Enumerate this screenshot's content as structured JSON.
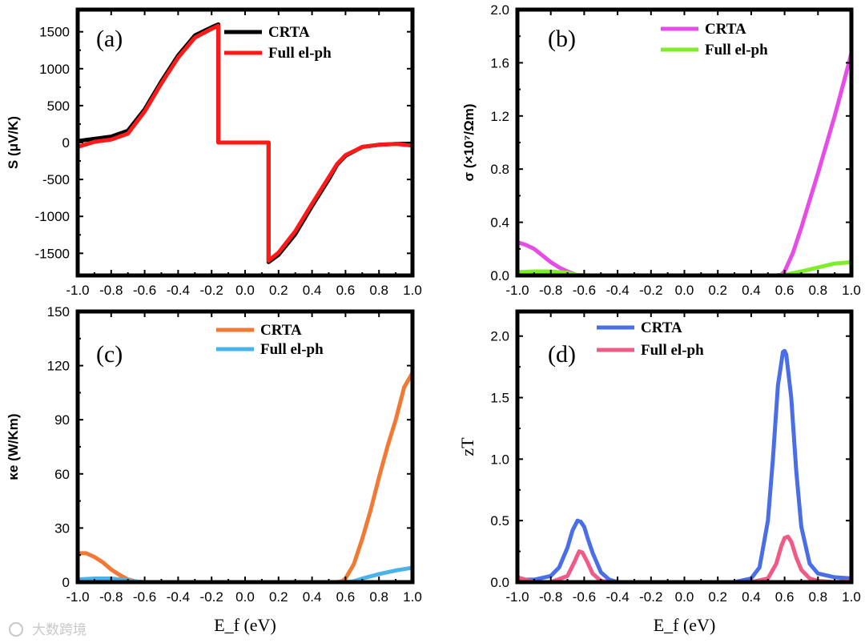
{
  "watermark": {
    "text": "大数跨境"
  },
  "chart_data": [
    {
      "panel": "(a)",
      "type": "line",
      "xlabel": "",
      "ylabel": "S (μV/K)",
      "xlim": [
        -1.0,
        1.0
      ],
      "ylim": [
        -1800,
        1800
      ],
      "xticks": [
        -1.0,
        -0.8,
        -0.6,
        -0.4,
        -0.2,
        0.0,
        0.2,
        0.4,
        0.6,
        0.8,
        1.0
      ],
      "xtick_labels": [
        "-1.0",
        "-0.8",
        "-0.6",
        "-0.4",
        "-0.2",
        "0.0",
        "0.2",
        "0.4",
        "0.6",
        "0.8",
        "1.0"
      ],
      "yticks": [
        -1500,
        -1000,
        -500,
        0,
        500,
        1000,
        1500
      ],
      "ytick_labels": [
        "-1500",
        "-1000",
        "-500",
        "0",
        "500",
        "1000",
        "1500"
      ],
      "legend": "top-right",
      "series": [
        {
          "name": "CRTA",
          "color": "#000000",
          "x": [
            -1.0,
            -0.9,
            -0.8,
            -0.7,
            -0.6,
            -0.5,
            -0.4,
            -0.3,
            -0.2,
            -0.16,
            -0.16,
            0.14,
            0.14,
            0.2,
            0.3,
            0.4,
            0.5,
            0.55,
            0.6,
            0.7,
            0.8,
            0.9,
            1.0
          ],
          "y": [
            20,
            50,
            80,
            160,
            450,
            830,
            1180,
            1450,
            1560,
            1600,
            0,
            0,
            -1620,
            -1520,
            -1240,
            -860,
            -500,
            -300,
            -180,
            -60,
            -30,
            -20,
            -15
          ]
        },
        {
          "name": "Full el-ph",
          "color": "#ff1a1a",
          "x": [
            -1.0,
            -0.9,
            -0.8,
            -0.7,
            -0.6,
            -0.5,
            -0.4,
            -0.3,
            -0.2,
            -0.16,
            -0.16,
            0.14,
            0.14,
            0.2,
            0.3,
            0.4,
            0.5,
            0.55,
            0.6,
            0.7,
            0.8,
            0.9,
            1.0
          ],
          "y": [
            -60,
            10,
            40,
            120,
            420,
            800,
            1150,
            1420,
            1540,
            1580,
            0,
            0,
            -1600,
            -1490,
            -1200,
            -830,
            -470,
            -290,
            -170,
            -60,
            -30,
            -20,
            -40
          ]
        }
      ]
    },
    {
      "panel": "(b)",
      "type": "line",
      "xlabel": "",
      "ylabel": "σ (×10⁷/Ωm)",
      "xlim": [
        -1.0,
        1.0
      ],
      "ylim": [
        0.0,
        2.0
      ],
      "xticks": [
        -1.0,
        -0.8,
        -0.6,
        -0.4,
        -0.2,
        0.0,
        0.2,
        0.4,
        0.6,
        0.8,
        1.0
      ],
      "xtick_labels": [
        "-1.0",
        "-0.8",
        "-0.6",
        "-0.4",
        "-0.2",
        "0.0",
        "0.2",
        "0.4",
        "0.6",
        "0.8",
        "1.0"
      ],
      "yticks": [
        0.0,
        0.4,
        0.8,
        1.2,
        1.6,
        2.0
      ],
      "ytick_labels": [
        "0.0",
        "0.4",
        "0.8",
        "1.2",
        "1.6",
        "2.0"
      ],
      "legend": "top-right",
      "series": [
        {
          "name": "CRTA",
          "color": "#e64ce6",
          "x": [
            -1.0,
            -0.95,
            -0.9,
            -0.85,
            -0.8,
            -0.75,
            -0.7,
            -0.65,
            -0.6,
            0.0,
            0.55,
            0.58,
            0.6,
            0.65,
            0.7,
            0.8,
            0.9,
            1.0
          ],
          "y": [
            0.25,
            0.23,
            0.2,
            0.15,
            0.1,
            0.06,
            0.03,
            0.005,
            0.0,
            0.0,
            0.0,
            0.005,
            0.03,
            0.17,
            0.36,
            0.77,
            1.2,
            1.67
          ]
        },
        {
          "name": "Full el-ph",
          "color": "#7fee2a",
          "x": [
            -1.0,
            -0.9,
            -0.8,
            -0.7,
            -0.65,
            -0.6,
            0.0,
            0.55,
            0.6,
            0.7,
            0.8,
            0.9,
            1.0
          ],
          "y": [
            0.025,
            0.03,
            0.03,
            0.02,
            0.005,
            0.0,
            0.0,
            0.0,
            0.005,
            0.03,
            0.06,
            0.09,
            0.1
          ]
        }
      ]
    },
    {
      "panel": "(c)",
      "type": "line",
      "xlabel": "E_f (eV)",
      "ylabel": "κe (W/Km)",
      "xlim": [
        -1.0,
        1.0
      ],
      "ylim": [
        0,
        150
      ],
      "xticks": [
        -1.0,
        -0.8,
        -0.6,
        -0.4,
        -0.2,
        0.0,
        0.2,
        0.4,
        0.6,
        0.8,
        1.0
      ],
      "xtick_labels": [
        "-1.0",
        "-0.8",
        "-0.6",
        "-0.4",
        "-0.2",
        "0.0",
        "0.2",
        "0.4",
        "0.6",
        "0.8",
        "1.0"
      ],
      "yticks": [
        0,
        30,
        60,
        90,
        120,
        150
      ],
      "ytick_labels": [
        "0",
        "30",
        "60",
        "90",
        "120",
        "150"
      ],
      "legend": "top-right",
      "series": [
        {
          "name": "CRTA",
          "color": "#f07a35",
          "x": [
            -1.0,
            -0.95,
            -0.9,
            -0.85,
            -0.8,
            -0.75,
            -0.7,
            -0.65,
            -0.6,
            0.0,
            0.55,
            0.58,
            0.6,
            0.65,
            0.7,
            0.75,
            0.8,
            0.85,
            0.9,
            0.95,
            1.0
          ],
          "y": [
            16,
            16,
            14,
            11,
            7,
            4,
            1.5,
            0.3,
            0,
            0,
            0,
            0.5,
            2,
            10,
            24,
            40,
            58,
            75,
            90,
            108,
            116
          ]
        },
        {
          "name": "Full el-ph",
          "color": "#4ab3ea",
          "x": [
            -1.0,
            -0.9,
            -0.8,
            -0.7,
            -0.65,
            -0.6,
            0.0,
            0.6,
            0.65,
            0.7,
            0.8,
            0.9,
            1.0
          ],
          "y": [
            1.5,
            2,
            2,
            1,
            0.3,
            0,
            0,
            0,
            0.5,
            2,
            4.5,
            6.5,
            8
          ]
        }
      ]
    },
    {
      "panel": "(d)",
      "type": "line",
      "xlabel": "E_f (eV)",
      "ylabel": "zT",
      "xlim": [
        -1.0,
        1.0
      ],
      "ylim": [
        0.0,
        2.2
      ],
      "xticks": [
        -1.0,
        -0.8,
        -0.6,
        -0.4,
        -0.2,
        0.0,
        0.2,
        0.4,
        0.6,
        0.8,
        1.0
      ],
      "xtick_labels": [
        "-1.0",
        "-0.8",
        "-0.6",
        "-0.4",
        "-0.2",
        "0.0",
        "0.2",
        "0.4",
        "0.6",
        "0.8",
        "1.0"
      ],
      "yticks": [
        0.0,
        0.5,
        1.0,
        1.5,
        2.0
      ],
      "ytick_labels": [
        "0.0",
        "0.5",
        "1.0",
        "1.5",
        "2.0"
      ],
      "legend": "top-center",
      "series": [
        {
          "name": "CRTA",
          "color": "#4a6ee6",
          "x": [
            -1.0,
            -0.9,
            -0.8,
            -0.75,
            -0.7,
            -0.67,
            -0.64,
            -0.62,
            -0.6,
            -0.58,
            -0.55,
            -0.5,
            -0.45,
            -0.4,
            0.3,
            0.4,
            0.45,
            0.5,
            0.53,
            0.56,
            0.59,
            0.6,
            0.61,
            0.64,
            0.67,
            0.7,
            0.75,
            0.8,
            0.9,
            1.0
          ],
          "y": [
            0.02,
            0.02,
            0.05,
            0.12,
            0.28,
            0.42,
            0.5,
            0.49,
            0.45,
            0.36,
            0.24,
            0.08,
            0.02,
            0.0,
            0.0,
            0.03,
            0.12,
            0.5,
            1.0,
            1.6,
            1.87,
            1.88,
            1.85,
            1.5,
            0.9,
            0.45,
            0.15,
            0.07,
            0.04,
            0.03
          ]
        },
        {
          "name": "Full el-ph",
          "color": "#ef5a86",
          "x": [
            -1.0,
            -0.9,
            -0.8,
            -0.7,
            -0.66,
            -0.63,
            -0.61,
            -0.58,
            -0.55,
            -0.5,
            -0.45,
            0.4,
            0.5,
            0.55,
            0.58,
            0.6,
            0.62,
            0.64,
            0.67,
            0.7,
            0.75,
            0.8,
            0.9,
            1.0
          ],
          "y": [
            0.04,
            0.0,
            0.0,
            0.05,
            0.16,
            0.25,
            0.24,
            0.16,
            0.07,
            0.01,
            0.0,
            0.0,
            0.03,
            0.15,
            0.29,
            0.36,
            0.37,
            0.33,
            0.2,
            0.1,
            0.03,
            0.01,
            0.0,
            0.01
          ]
        }
      ]
    }
  ]
}
